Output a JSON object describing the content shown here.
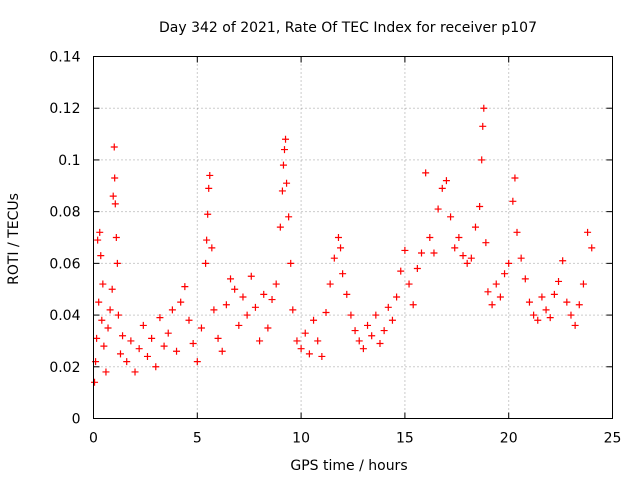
{
  "chart_data": {
    "type": "scatter",
    "title": "Day 342 of 2021, Rate Of TEC Index for receiver p107",
    "xlabel": "GPS time / hours",
    "ylabel": "ROTI / TECUs",
    "xlim": [
      0,
      25
    ],
    "ylim": [
      0,
      0.14
    ],
    "x_ticks": [
      {
        "value": 0,
        "label": "0"
      },
      {
        "value": 5,
        "label": "5"
      },
      {
        "value": 10,
        "label": "10"
      },
      {
        "value": 15,
        "label": "15"
      },
      {
        "value": 20,
        "label": "20"
      },
      {
        "value": 25,
        "label": "25"
      }
    ],
    "y_ticks": [
      {
        "value": 0,
        "label": "0"
      },
      {
        "value": 0.02,
        "label": "0.02"
      },
      {
        "value": 0.04,
        "label": "0.04"
      },
      {
        "value": 0.06,
        "label": "0.06"
      },
      {
        "value": 0.08,
        "label": "0.08"
      },
      {
        "value": 0.1,
        "label": "0.1"
      },
      {
        "value": 0.12,
        "label": "0.12"
      },
      {
        "value": 0.14,
        "label": "0.14"
      }
    ],
    "grid": true,
    "marker": "+",
    "series": [
      {
        "name": "ROTI",
        "color": "#ff0000",
        "points": [
          [
            0.05,
            0.014
          ],
          [
            0.1,
            0.022
          ],
          [
            0.15,
            0.031
          ],
          [
            0.2,
            0.069
          ],
          [
            0.25,
            0.045
          ],
          [
            0.3,
            0.072
          ],
          [
            0.35,
            0.063
          ],
          [
            0.4,
            0.038
          ],
          [
            0.45,
            0.052
          ],
          [
            0.5,
            0.028
          ],
          [
            0.6,
            0.018
          ],
          [
            0.7,
            0.035
          ],
          [
            0.8,
            0.042
          ],
          [
            0.9,
            0.05
          ],
          [
            0.95,
            0.086
          ],
          [
            1.0,
            0.105
          ],
          [
            1.02,
            0.093
          ],
          [
            1.05,
            0.083
          ],
          [
            1.1,
            0.07
          ],
          [
            1.15,
            0.06
          ],
          [
            1.2,
            0.04
          ],
          [
            1.3,
            0.025
          ],
          [
            1.4,
            0.032
          ],
          [
            1.6,
            0.022
          ],
          [
            1.8,
            0.03
          ],
          [
            2.0,
            0.018
          ],
          [
            2.2,
            0.027
          ],
          [
            2.4,
            0.036
          ],
          [
            2.6,
            0.024
          ],
          [
            2.8,
            0.031
          ],
          [
            3.0,
            0.02
          ],
          [
            3.2,
            0.039
          ],
          [
            3.4,
            0.028
          ],
          [
            3.6,
            0.033
          ],
          [
            3.8,
            0.042
          ],
          [
            4.0,
            0.026
          ],
          [
            4.2,
            0.045
          ],
          [
            4.4,
            0.051
          ],
          [
            4.6,
            0.038
          ],
          [
            4.8,
            0.029
          ],
          [
            5.0,
            0.022
          ],
          [
            5.2,
            0.035
          ],
          [
            5.4,
            0.06
          ],
          [
            5.45,
            0.069
          ],
          [
            5.5,
            0.079
          ],
          [
            5.55,
            0.089
          ],
          [
            5.6,
            0.094
          ],
          [
            5.7,
            0.066
          ],
          [
            5.8,
            0.042
          ],
          [
            6.0,
            0.031
          ],
          [
            6.2,
            0.026
          ],
          [
            6.4,
            0.044
          ],
          [
            6.6,
            0.054
          ],
          [
            6.8,
            0.05
          ],
          [
            7.0,
            0.036
          ],
          [
            7.2,
            0.047
          ],
          [
            7.4,
            0.04
          ],
          [
            7.6,
            0.055
          ],
          [
            7.8,
            0.043
          ],
          [
            8.0,
            0.03
          ],
          [
            8.2,
            0.048
          ],
          [
            8.4,
            0.035
          ],
          [
            8.6,
            0.046
          ],
          [
            8.8,
            0.052
          ],
          [
            9.0,
            0.074
          ],
          [
            9.1,
            0.088
          ],
          [
            9.15,
            0.098
          ],
          [
            9.2,
            0.104
          ],
          [
            9.25,
            0.108
          ],
          [
            9.3,
            0.091
          ],
          [
            9.4,
            0.078
          ],
          [
            9.5,
            0.06
          ],
          [
            9.6,
            0.042
          ],
          [
            9.8,
            0.03
          ],
          [
            10.0,
            0.027
          ],
          [
            10.2,
            0.033
          ],
          [
            10.4,
            0.025
          ],
          [
            10.6,
            0.038
          ],
          [
            10.8,
            0.03
          ],
          [
            11.0,
            0.024
          ],
          [
            11.2,
            0.041
          ],
          [
            11.4,
            0.052
          ],
          [
            11.6,
            0.062
          ],
          [
            11.8,
            0.07
          ],
          [
            11.9,
            0.066
          ],
          [
            12.0,
            0.056
          ],
          [
            12.2,
            0.048
          ],
          [
            12.4,
            0.04
          ],
          [
            12.6,
            0.034
          ],
          [
            12.8,
            0.03
          ],
          [
            13.0,
            0.027
          ],
          [
            13.2,
            0.036
          ],
          [
            13.4,
            0.032
          ],
          [
            13.6,
            0.04
          ],
          [
            13.8,
            0.029
          ],
          [
            14.0,
            0.034
          ],
          [
            14.2,
            0.043
          ],
          [
            14.4,
            0.038
          ],
          [
            14.6,
            0.047
          ],
          [
            14.8,
            0.057
          ],
          [
            15.0,
            0.065
          ],
          [
            15.2,
            0.052
          ],
          [
            15.4,
            0.044
          ],
          [
            15.6,
            0.058
          ],
          [
            15.8,
            0.064
          ],
          [
            16.0,
            0.095
          ],
          [
            16.2,
            0.07
          ],
          [
            16.4,
            0.064
          ],
          [
            16.6,
            0.081
          ],
          [
            16.8,
            0.089
          ],
          [
            17.0,
            0.092
          ],
          [
            17.2,
            0.078
          ],
          [
            17.4,
            0.066
          ],
          [
            17.6,
            0.07
          ],
          [
            17.8,
            0.063
          ],
          [
            18.0,
            0.06
          ],
          [
            18.2,
            0.062
          ],
          [
            18.4,
            0.074
          ],
          [
            18.6,
            0.082
          ],
          [
            18.7,
            0.1
          ],
          [
            18.75,
            0.113
          ],
          [
            18.8,
            0.12
          ],
          [
            18.9,
            0.068
          ],
          [
            19.0,
            0.049
          ],
          [
            19.2,
            0.044
          ],
          [
            19.4,
            0.052
          ],
          [
            19.6,
            0.047
          ],
          [
            19.8,
            0.056
          ],
          [
            20.0,
            0.06
          ],
          [
            20.2,
            0.084
          ],
          [
            20.3,
            0.093
          ],
          [
            20.4,
            0.072
          ],
          [
            20.6,
            0.062
          ],
          [
            20.8,
            0.054
          ],
          [
            21.0,
            0.045
          ],
          [
            21.2,
            0.04
          ],
          [
            21.4,
            0.038
          ],
          [
            21.6,
            0.047
          ],
          [
            21.8,
            0.042
          ],
          [
            22.0,
            0.039
          ],
          [
            22.2,
            0.048
          ],
          [
            22.4,
            0.053
          ],
          [
            22.6,
            0.061
          ],
          [
            22.8,
            0.045
          ],
          [
            23.0,
            0.04
          ],
          [
            23.2,
            0.036
          ],
          [
            23.4,
            0.044
          ],
          [
            23.6,
            0.052
          ],
          [
            23.8,
            0.072
          ],
          [
            24.0,
            0.066
          ]
        ]
      }
    ]
  }
}
